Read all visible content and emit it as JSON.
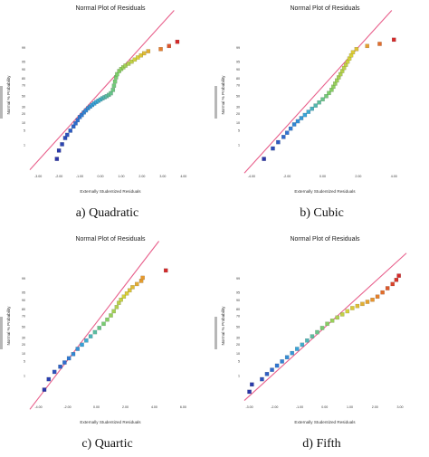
{
  "chart_data": [
    {
      "type": "scatter",
      "caption": "a) Quadratic",
      "title": "Normal Plot of Residuals",
      "xlabel": "Externally Studentized Residuals",
      "ylabel": "Normal % Probability",
      "x_ticks": [
        "-3.00",
        "-2.00",
        "-1.00",
        "0.00",
        "1.00",
        "2.00",
        "3.00",
        "4.00"
      ],
      "y_ticks": [
        "1",
        "5",
        "10",
        "20",
        "30",
        "50",
        "70",
        "80",
        "90",
        "95",
        "99"
      ],
      "xlim": [
        -3.4,
        4.4
      ],
      "reference_line": {
        "x1": -3.2,
        "z1": -3.3,
        "x2": 2.45,
        "z2": 2.9
      },
      "points": [
        [
          -2.1,
          -3.0
        ],
        [
          -2.0,
          -2.6
        ],
        [
          -1.85,
          -2.3
        ],
        [
          -1.7,
          -2.0
        ],
        [
          -1.6,
          -1.85
        ],
        [
          -1.45,
          -1.65
        ],
        [
          -1.3,
          -1.45
        ],
        [
          -1.2,
          -1.3
        ],
        [
          -1.1,
          -1.15
        ],
        [
          -1.0,
          -1.0
        ],
        [
          -0.9,
          -0.9
        ],
        [
          -0.8,
          -0.78
        ],
        [
          -0.7,
          -0.68
        ],
        [
          -0.6,
          -0.58
        ],
        [
          -0.5,
          -0.5
        ],
        [
          -0.4,
          -0.42
        ],
        [
          -0.3,
          -0.35
        ],
        [
          -0.2,
          -0.28
        ],
        [
          -0.1,
          -0.22
        ],
        [
          0.0,
          -0.16
        ],
        [
          0.1,
          -0.1
        ],
        [
          0.2,
          -0.05
        ],
        [
          0.3,
          0.0
        ],
        [
          0.4,
          0.06
        ],
        [
          0.5,
          0.14
        ],
        [
          0.6,
          0.3
        ],
        [
          0.65,
          0.5
        ],
        [
          0.7,
          0.7
        ],
        [
          0.75,
          0.9
        ],
        [
          0.8,
          1.05
        ],
        [
          0.9,
          1.2
        ],
        [
          1.0,
          1.3
        ],
        [
          1.1,
          1.38
        ],
        [
          1.2,
          1.46
        ],
        [
          1.35,
          1.55
        ],
        [
          1.5,
          1.65
        ],
        [
          1.65,
          1.75
        ],
        [
          1.8,
          1.85
        ],
        [
          1.95,
          1.95
        ],
        [
          2.1,
          2.05
        ],
        [
          2.3,
          2.15
        ],
        [
          2.9,
          2.25
        ],
        [
          3.3,
          2.4
        ],
        [
          3.7,
          2.6
        ]
      ]
    },
    {
      "type": "scatter",
      "caption": "b) Cubic",
      "title": "Normal Plot of Residuals",
      "xlabel": "Externally Studentized Residuals",
      "ylabel": "Normal % Probability",
      "x_ticks": [
        "-4.00",
        "-2.00",
        "0.00",
        "2.00",
        "4.00"
      ],
      "y_ticks": [
        "1",
        "5",
        "10",
        "20",
        "30",
        "50",
        "70",
        "80",
        "90",
        "95",
        "99"
      ],
      "xlim": [
        -4.4,
        4.7
      ],
      "reference_line": {
        "x1": -4.0,
        "z1": -3.3,
        "x2": 2.6,
        "z2": 2.9
      },
      "points": [
        [
          -3.3,
          -3.0
        ],
        [
          -2.8,
          -2.5
        ],
        [
          -2.5,
          -2.2
        ],
        [
          -2.2,
          -1.95
        ],
        [
          -2.0,
          -1.75
        ],
        [
          -1.8,
          -1.55
        ],
        [
          -1.6,
          -1.35
        ],
        [
          -1.4,
          -1.2
        ],
        [
          -1.2,
          -1.05
        ],
        [
          -1.0,
          -0.9
        ],
        [
          -0.8,
          -0.75
        ],
        [
          -0.6,
          -0.6
        ],
        [
          -0.4,
          -0.45
        ],
        [
          -0.2,
          -0.3
        ],
        [
          0.0,
          -0.15
        ],
        [
          0.2,
          0.0
        ],
        [
          0.35,
          0.15
        ],
        [
          0.5,
          0.3
        ],
        [
          0.6,
          0.45
        ],
        [
          0.7,
          0.6
        ],
        [
          0.8,
          0.75
        ],
        [
          0.9,
          0.9
        ],
        [
          1.0,
          1.05
        ],
        [
          1.1,
          1.2
        ],
        [
          1.2,
          1.35
        ],
        [
          1.3,
          1.5
        ],
        [
          1.4,
          1.65
        ],
        [
          1.5,
          1.8
        ],
        [
          1.6,
          1.95
        ],
        [
          1.7,
          2.1
        ],
        [
          1.9,
          2.25
        ],
        [
          2.5,
          2.4
        ],
        [
          3.2,
          2.5
        ],
        [
          4.0,
          2.7
        ]
      ]
    },
    {
      "type": "scatter",
      "caption": "c) Quartic",
      "title": "Normal Plot of Residuals",
      "xlabel": "Externally Studentized Residuals",
      "ylabel": "Normal % Probability",
      "x_ticks": [
        "-4.00",
        "-2.00",
        "0.00",
        "2.00",
        "4.00",
        "6.00"
      ],
      "y_ticks": [
        "1",
        "5",
        "10",
        "20",
        "30",
        "50",
        "70",
        "80",
        "90",
        "95",
        "99"
      ],
      "xlim": [
        -4.6,
        6.6
      ],
      "reference_line": {
        "x1": -4.0,
        "z1": -3.4,
        "x2": 3.1,
        "z2": 3.0
      },
      "points": [
        [
          -3.6,
          -3.0
        ],
        [
          -3.3,
          -2.5
        ],
        [
          -2.9,
          -2.15
        ],
        [
          -2.5,
          -1.9
        ],
        [
          -2.2,
          -1.7
        ],
        [
          -1.9,
          -1.5
        ],
        [
          -1.6,
          -1.3
        ],
        [
          -1.3,
          -1.05
        ],
        [
          -1.0,
          -0.85
        ],
        [
          -0.7,
          -0.65
        ],
        [
          -0.4,
          -0.45
        ],
        [
          -0.1,
          -0.25
        ],
        [
          0.2,
          -0.05
        ],
        [
          0.5,
          0.15
        ],
        [
          0.75,
          0.35
        ],
        [
          1.0,
          0.55
        ],
        [
          1.2,
          0.75
        ],
        [
          1.4,
          0.95
        ],
        [
          1.55,
          1.15
        ],
        [
          1.7,
          1.3
        ],
        [
          1.9,
          1.45
        ],
        [
          2.1,
          1.6
        ],
        [
          2.3,
          1.75
        ],
        [
          2.5,
          1.9
        ],
        [
          2.8,
          2.05
        ],
        [
          3.1,
          2.2
        ],
        [
          3.2,
          2.35
        ],
        [
          4.8,
          2.7
        ]
      ]
    },
    {
      "type": "scatter",
      "caption": "d) Fifth",
      "title": "Normal Plot of Residuals",
      "xlabel": "Externally Studentized Residuals",
      "ylabel": "Normal % Probability",
      "x_ticks": [
        "-3.00",
        "-2.00",
        "-1.00",
        "0.00",
        "1.00",
        "2.00",
        "3.00"
      ],
      "y_ticks": [
        "1",
        "5",
        "10",
        "20",
        "30",
        "50",
        "70",
        "80",
        "90",
        "95",
        "99"
      ],
      "xlim": [
        -3.2,
        3.25
      ],
      "reference_line": {
        "x1": -3.0,
        "z1": -3.3,
        "x2": 2.95,
        "z2": 3.2
      },
      "points": [
        [
          -3.0,
          -3.1
        ],
        [
          -2.9,
          -2.75
        ],
        [
          -2.5,
          -2.5
        ],
        [
          -2.3,
          -2.25
        ],
        [
          -2.1,
          -2.05
        ],
        [
          -1.9,
          -1.85
        ],
        [
          -1.7,
          -1.65
        ],
        [
          -1.5,
          -1.45
        ],
        [
          -1.3,
          -1.25
        ],
        [
          -1.1,
          -1.05
        ],
        [
          -0.9,
          -0.85
        ],
        [
          -0.7,
          -0.65
        ],
        [
          -0.5,
          -0.45
        ],
        [
          -0.3,
          -0.25
        ],
        [
          -0.1,
          -0.05
        ],
        [
          0.1,
          0.15
        ],
        [
          0.3,
          0.3
        ],
        [
          0.5,
          0.45
        ],
        [
          0.7,
          0.6
        ],
        [
          0.9,
          0.75
        ],
        [
          1.1,
          0.9
        ],
        [
          1.3,
          1.0
        ],
        [
          1.5,
          1.1
        ],
        [
          1.7,
          1.2
        ],
        [
          1.9,
          1.3
        ],
        [
          2.1,
          1.45
        ],
        [
          2.3,
          1.65
        ],
        [
          2.5,
          1.85
        ],
        [
          2.7,
          2.05
        ],
        [
          2.85,
          2.25
        ],
        [
          2.95,
          2.45
        ]
      ]
    }
  ],
  "colors": {
    "reference_line": "#e8608c",
    "point_scale": [
      "#2b35a8",
      "#2f6fd0",
      "#3aa9d8",
      "#7ccf6a",
      "#d9d23a",
      "#e8902c",
      "#d42a2a"
    ]
  }
}
